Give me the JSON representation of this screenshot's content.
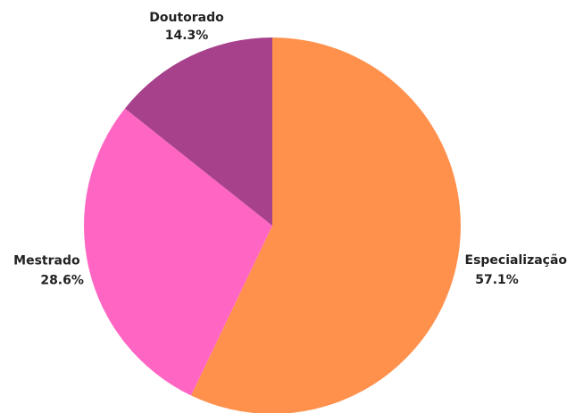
{
  "chart_data": {
    "type": "pie",
    "categories": [
      "Especialização",
      "Mestrado",
      "Doutorado"
    ],
    "values": [
      57.1,
      28.6,
      14.3
    ],
    "value_labels": [
      "57.1%",
      "28.6%",
      "14.3%"
    ],
    "colors": [
      "#ff914d",
      "#ff66c4",
      "#a8418c"
    ]
  }
}
